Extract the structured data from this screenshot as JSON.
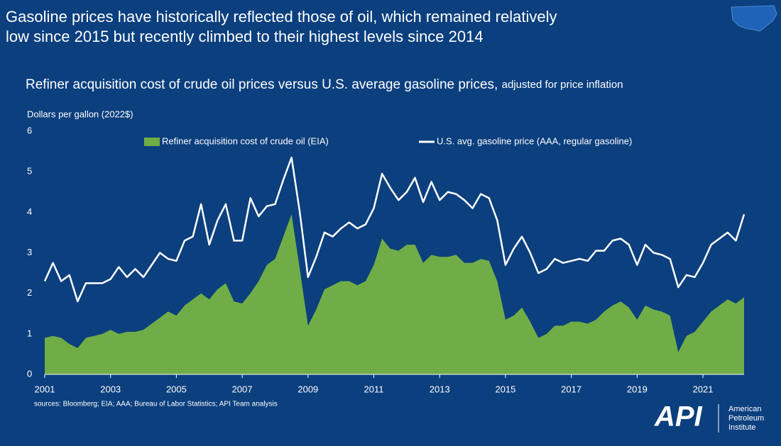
{
  "chart_data": {
    "type": "area-line",
    "title": [
      "Gasoline prices have historically reflected those of oil, which remained relatively",
      "low since 2015 but recently climbed to their highest levels since 2014"
    ],
    "subtitle": "Refiner acquisition cost of crude oil prices versus U.S. average gasoline prices,",
    "subtitle_note": "adjusted for price inflation",
    "y_label": "Dollars per gallon (2022$)",
    "source": "sources: Bloomberg; EIA; AAA; Bureau of Labor Statistics; API Team analysis",
    "x": [
      2001,
      2001.25,
      2001.5,
      2001.75,
      2002,
      2002.25,
      2002.5,
      2002.75,
      2003,
      2003.25,
      2003.5,
      2003.75,
      2004,
      2004.25,
      2004.5,
      2004.75,
      2005,
      2005.25,
      2005.5,
      2005.75,
      2006,
      2006.25,
      2006.5,
      2006.75,
      2007,
      2007.25,
      2007.5,
      2007.75,
      2008,
      2008.25,
      2008.5,
      2008.75,
      2009,
      2009.25,
      2009.5,
      2009.75,
      2010,
      2010.25,
      2010.5,
      2010.75,
      2011,
      2011.25,
      2011.5,
      2011.75,
      2012,
      2012.25,
      2012.5,
      2012.75,
      2013,
      2013.25,
      2013.5,
      2013.75,
      2014,
      2014.25,
      2014.5,
      2014.75,
      2015,
      2015.25,
      2015.5,
      2015.75,
      2016,
      2016.25,
      2016.5,
      2016.75,
      2017,
      2017.25,
      2017.5,
      2017.75,
      2018,
      2018.25,
      2018.5,
      2018.75,
      2019,
      2019.25,
      2019.5,
      2019.75,
      2020,
      2020.25,
      2020.5,
      2020.75,
      2021,
      2021.25,
      2021.5,
      2021.75,
      2022,
      2022.25
    ],
    "series": [
      {
        "name": "Refiner acquisition cost of crude oil (EIA)",
        "color": "#70ad47",
        "kind": "area",
        "values": [
          0.9,
          0.95,
          0.9,
          0.75,
          0.65,
          0.9,
          0.95,
          1.0,
          1.1,
          1.0,
          1.05,
          1.05,
          1.1,
          1.25,
          1.4,
          1.55,
          1.45,
          1.7,
          1.85,
          2.0,
          1.85,
          2.1,
          2.25,
          1.8,
          1.75,
          2.0,
          2.3,
          2.7,
          2.85,
          3.4,
          3.95,
          2.6,
          1.2,
          1.6,
          2.1,
          2.2,
          2.3,
          2.3,
          2.2,
          2.3,
          2.7,
          3.35,
          3.1,
          3.05,
          3.2,
          3.2,
          2.75,
          2.95,
          2.9,
          2.9,
          2.95,
          2.75,
          2.75,
          2.85,
          2.8,
          2.3,
          1.35,
          1.45,
          1.65,
          1.3,
          0.9,
          1.0,
          1.2,
          1.2,
          1.3,
          1.3,
          1.25,
          1.35,
          1.55,
          1.7,
          1.8,
          1.65,
          1.35,
          1.7,
          1.6,
          1.55,
          1.45,
          0.55,
          0.95,
          1.05,
          1.3,
          1.55,
          1.7,
          1.85,
          1.75,
          1.9
        ]
      },
      {
        "name": "U.S. avg. gasoline price (AAA, regular gasoline)",
        "color": "#ffffff",
        "kind": "line",
        "values": [
          2.3,
          2.75,
          2.3,
          2.45,
          1.8,
          2.25,
          2.25,
          2.25,
          2.35,
          2.65,
          2.4,
          2.6,
          2.4,
          2.7,
          3.0,
          2.85,
          2.8,
          3.3,
          3.4,
          4.2,
          3.2,
          3.8,
          4.2,
          3.3,
          3.3,
          4.35,
          3.9,
          4.15,
          4.2,
          4.8,
          5.35,
          4.0,
          2.4,
          2.9,
          3.5,
          3.4,
          3.6,
          3.75,
          3.6,
          3.7,
          4.1,
          4.95,
          4.6,
          4.3,
          4.5,
          4.85,
          4.25,
          4.75,
          4.3,
          4.5,
          4.45,
          4.3,
          4.1,
          4.45,
          4.35,
          3.8,
          2.7,
          3.1,
          3.4,
          3.0,
          2.5,
          2.6,
          2.85,
          2.75,
          2.8,
          2.85,
          2.8,
          3.05,
          3.05,
          3.3,
          3.35,
          3.2,
          2.7,
          3.2,
          3.0,
          2.95,
          2.85,
          2.15,
          2.45,
          2.4,
          2.75,
          3.2,
          3.35,
          3.5,
          3.3,
          3.95
        ]
      }
    ],
    "xlim": [
      2001,
      2022.25
    ],
    "xticks": [
      2001,
      2003,
      2005,
      2007,
      2009,
      2011,
      2013,
      2015,
      2017,
      2019,
      2021
    ],
    "ylim": [
      0,
      6
    ],
    "yticks": [
      0,
      1,
      2,
      3,
      4,
      5,
      6
    ],
    "grid": false,
    "logo": {
      "mark": "API",
      "name": [
        "American",
        "Petroleum",
        "Institute"
      ]
    }
  }
}
